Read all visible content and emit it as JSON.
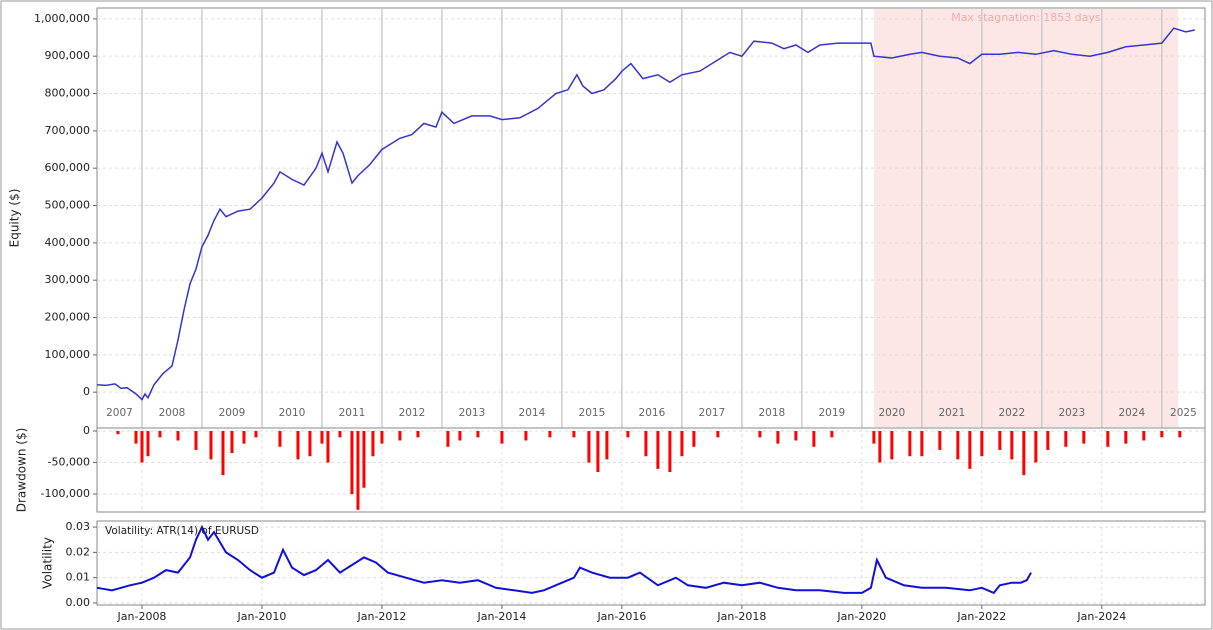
{
  "chart_data": [
    {
      "type": "line",
      "ylabel": "Equity ($)",
      "color": "#3434d0",
      "xlim": [
        2007.25,
        2025.72
      ],
      "ylim": [
        -96000,
        1029000
      ],
      "yticks": [
        0,
        {
          "value": 100000,
          "label": "100,000"
        },
        {
          "value": 200000,
          "label": "200,000"
        },
        {
          "value": 300000,
          "label": "300,000"
        },
        {
          "value": 400000,
          "label": "400,000"
        },
        {
          "value": 500000,
          "label": "500,000"
        },
        {
          "value": 600000,
          "label": "600,000"
        },
        {
          "value": 700000,
          "label": "700,000"
        },
        {
          "value": 800000,
          "label": "800,000"
        },
        {
          "value": 900000,
          "label": "900,000"
        },
        {
          "value": 1000000,
          "label": "1,000,000"
        }
      ],
      "grid": true,
      "year_bands": [
        2007,
        2008,
        2009,
        2010,
        2011,
        2012,
        2013,
        2014,
        2015,
        2016,
        2017,
        2018,
        2019,
        2020,
        2021,
        2022,
        2023,
        2024,
        2025
      ],
      "highlight": {
        "range": [
          2020.2,
          2025.27
        ],
        "label": "Max stagnation: 1853 days",
        "color": "#fde6e6",
        "text_color": "#f3a9a9"
      },
      "x": [
        2007.25,
        2007.4,
        2007.55,
        2007.65,
        2007.75,
        2007.9,
        2008.0,
        2008.05,
        2008.1,
        2008.2,
        2008.35,
        2008.5,
        2008.6,
        2008.7,
        2008.8,
        2008.9,
        2009.0,
        2009.1,
        2009.2,
        2009.3,
        2009.4,
        2009.6,
        2009.8,
        2010.0,
        2010.2,
        2010.3,
        2010.5,
        2010.7,
        2010.9,
        2011.0,
        2011.1,
        2011.25,
        2011.35,
        2011.5,
        2011.6,
        2011.8,
        2012.0,
        2012.3,
        2012.5,
        2012.7,
        2012.9,
        2013.0,
        2013.2,
        2013.5,
        2013.8,
        2014.0,
        2014.3,
        2014.6,
        2014.9,
        2015.1,
        2015.25,
        2015.35,
        2015.5,
        2015.7,
        2015.9,
        2016.0,
        2016.15,
        2016.35,
        2016.6,
        2016.8,
        2017.0,
        2017.3,
        2017.6,
        2017.8,
        2018.0,
        2018.2,
        2018.5,
        2018.7,
        2018.9,
        2019.1,
        2019.3,
        2019.6,
        2020.15,
        2020.2,
        2020.5,
        2020.8,
        2021.0,
        2021.3,
        2021.6,
        2021.8,
        2022.0,
        2022.3,
        2022.6,
        2022.9,
        2023.2,
        2023.5,
        2023.8,
        2024.1,
        2024.4,
        2024.7,
        2025.0,
        2025.2,
        2025.4,
        2025.55
      ],
      "values": [
        20000,
        18000,
        22000,
        10000,
        12000,
        -5000,
        -20000,
        -5000,
        -15000,
        20000,
        50000,
        70000,
        140000,
        220000,
        290000,
        330000,
        390000,
        420000,
        460000,
        490000,
        470000,
        485000,
        490000,
        520000,
        560000,
        590000,
        570000,
        555000,
        600000,
        640000,
        590000,
        670000,
        640000,
        560000,
        580000,
        610000,
        650000,
        680000,
        690000,
        720000,
        710000,
        750000,
        720000,
        740000,
        740000,
        730000,
        735000,
        760000,
        800000,
        810000,
        850000,
        820000,
        800000,
        810000,
        840000,
        860000,
        880000,
        840000,
        850000,
        830000,
        850000,
        860000,
        890000,
        910000,
        900000,
        940000,
        935000,
        920000,
        930000,
        910000,
        930000,
        935000,
        935000,
        900000,
        895000,
        905000,
        910000,
        900000,
        895000,
        880000,
        905000,
        905000,
        910000,
        905000,
        915000,
        905000,
        900000,
        910000,
        925000,
        930000,
        935000,
        975000,
        965000,
        970000
      ]
    },
    {
      "type": "bar",
      "ylabel": "Drawdown ($)",
      "color": "#ff0000",
      "xlim": [
        2007.25,
        2025.72
      ],
      "ylim": [
        -128500,
        4800
      ],
      "yticks": [
        0,
        {
          "value": -50000,
          "label": "-50,000"
        },
        {
          "value": -100000,
          "label": "-100,000"
        }
      ],
      "grid": true,
      "x": [
        2007.6,
        2007.9,
        2008.0,
        2008.1,
        2008.3,
        2008.6,
        2008.9,
        2009.15,
        2009.35,
        2009.5,
        2009.7,
        2009.9,
        2010.3,
        2010.6,
        2010.8,
        2011.0,
        2011.1,
        2011.3,
        2011.5,
        2011.6,
        2011.7,
        2011.85,
        2012.0,
        2012.3,
        2012.6,
        2013.1,
        2013.3,
        2013.6,
        2014.0,
        2014.4,
        2014.8,
        2015.2,
        2015.45,
        2015.6,
        2015.75,
        2016.1,
        2016.4,
        2016.6,
        2016.8,
        2017.0,
        2017.2,
        2017.6,
        2018.3,
        2018.6,
        2018.9,
        2019.2,
        2019.5,
        2020.2,
        2020.3,
        2020.5,
        2020.8,
        2021.0,
        2021.3,
        2021.6,
        2021.8,
        2022.0,
        2022.3,
        2022.5,
        2022.7,
        2022.9,
        2023.1,
        2023.4,
        2023.7,
        2024.1,
        2024.4,
        2024.7,
        2025.0,
        2025.3
      ],
      "values": [
        -5000,
        -20000,
        -50000,
        -40000,
        -10000,
        -15000,
        -30000,
        -45000,
        -70000,
        -35000,
        -20000,
        -10000,
        -25000,
        -45000,
        -40000,
        -20000,
        -50000,
        -10000,
        -100000,
        -125000,
        -90000,
        -40000,
        -20000,
        -15000,
        -10000,
        -25000,
        -15000,
        -10000,
        -20000,
        -15000,
        -10000,
        -10000,
        -50000,
        -65000,
        -45000,
        -10000,
        -40000,
        -60000,
        -65000,
        -40000,
        -25000,
        -10000,
        -10000,
        -20000,
        -15000,
        -25000,
        -10000,
        -20000,
        -50000,
        -45000,
        -40000,
        -40000,
        -30000,
        -45000,
        -60000,
        -40000,
        -30000,
        -45000,
        -70000,
        -50000,
        -30000,
        -25000,
        -20000,
        -25000,
        -20000,
        -15000,
        -10000,
        -10000
      ]
    },
    {
      "type": "line",
      "ylabel": "Volatility",
      "color": "#1010d8",
      "annotation": "Volatility: ATR(14) of EURUSD",
      "xlim": [
        2007.25,
        2025.72
      ],
      "ylim": [
        -0.0008,
        0.0324
      ],
      "yticks": [
        {
          "value": 0,
          "label": "0.00"
        },
        0.01,
        0.02,
        0.03
      ],
      "xticks": [
        {
          "value": 2008,
          "label": "Jan-2008"
        },
        {
          "value": 2010,
          "label": "Jan-2010"
        },
        {
          "value": 2012,
          "label": "Jan-2012"
        },
        {
          "value": 2014,
          "label": "Jan-2014"
        },
        {
          "value": 2016,
          "label": "Jan-2016"
        },
        {
          "value": 2018,
          "label": "Jan-2018"
        },
        {
          "value": 2020,
          "label": "Jan-2020"
        },
        {
          "value": 2022,
          "label": "Jan-2022"
        },
        {
          "value": 2024,
          "label": "Jan-2024"
        }
      ],
      "grid": true,
      "x": [
        2007.25,
        2007.5,
        2007.8,
        2008.0,
        2008.2,
        2008.4,
        2008.6,
        2008.8,
        2008.9,
        2009.0,
        2009.1,
        2009.2,
        2009.4,
        2009.6,
        2009.8,
        2010.0,
        2010.2,
        2010.35,
        2010.5,
        2010.7,
        2010.9,
        2011.1,
        2011.3,
        2011.5,
        2011.7,
        2011.9,
        2012.1,
        2012.4,
        2012.7,
        2013.0,
        2013.3,
        2013.6,
        2013.9,
        2014.2,
        2014.5,
        2014.7,
        2015.2,
        2015.3,
        2015.5,
        2015.8,
        2016.1,
        2016.3,
        2016.6,
        2016.9,
        2017.1,
        2017.4,
        2017.7,
        2018.0,
        2018.3,
        2018.6,
        2018.9,
        2019.3,
        2019.7,
        2020.0,
        2020.15,
        2020.25,
        2020.4,
        2020.7,
        2021.0,
        2021.4,
        2021.8,
        2022.0,
        2022.2,
        2022.3,
        2022.5,
        2022.65,
        2022.75,
        2022.82
      ],
      "values": [
        0.006,
        0.005,
        0.007,
        0.008,
        0.01,
        0.013,
        0.012,
        0.018,
        0.025,
        0.03,
        0.025,
        0.028,
        0.02,
        0.017,
        0.013,
        0.01,
        0.012,
        0.021,
        0.014,
        0.011,
        0.013,
        0.017,
        0.012,
        0.015,
        0.018,
        0.016,
        0.012,
        0.01,
        0.008,
        0.009,
        0.008,
        0.009,
        0.006,
        0.005,
        0.004,
        0.005,
        0.01,
        0.014,
        0.012,
        0.01,
        0.01,
        0.012,
        0.007,
        0.01,
        0.007,
        0.006,
        0.008,
        0.007,
        0.008,
        0.006,
        0.005,
        0.005,
        0.004,
        0.004,
        0.006,
        0.017,
        0.01,
        0.007,
        0.006,
        0.006,
        0.005,
        0.006,
        0.004,
        0.007,
        0.008,
        0.008,
        0.009,
        0.012
      ]
    }
  ]
}
